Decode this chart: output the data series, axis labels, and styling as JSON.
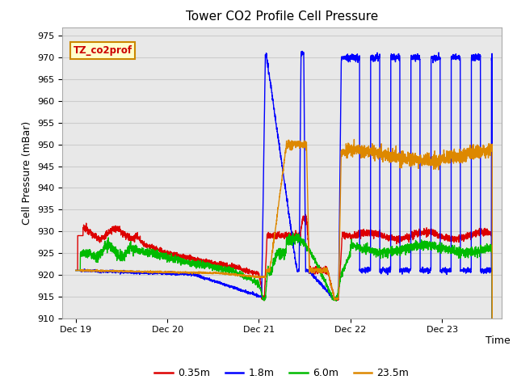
{
  "title": "Tower CO2 Profile Cell Pressure",
  "ylabel": "Cell Pressure (mBar)",
  "xlabel": "Time",
  "annotation_label": "TZ_co2prof",
  "annotation_bg": "#ffffcc",
  "annotation_border": "#cc8800",
  "ylim": [
    910,
    977
  ],
  "yticks": [
    910,
    915,
    920,
    925,
    930,
    935,
    940,
    945,
    950,
    955,
    960,
    965,
    970,
    975
  ],
  "xlim": [
    -0.15,
    4.65
  ],
  "xtick_positions": [
    0,
    1,
    2,
    3,
    4
  ],
  "xtick_labels": [
    "Dec 19",
    "Dec 20",
    "Dec 21",
    "Dec 22",
    "Dec 23"
  ],
  "grid_color": "#cccccc",
  "fig_bg": "#ffffff",
  "plot_bg": "#e8e8e8",
  "series": {
    "0.35m": {
      "color": "#dd0000",
      "lw": 1.0
    },
    "1.8m": {
      "color": "#0000ff",
      "lw": 1.0
    },
    "6.0m": {
      "color": "#00bb00",
      "lw": 1.0
    },
    "23.5m": {
      "color": "#dd8800",
      "lw": 1.0
    }
  },
  "legend_entries": [
    "0.35m",
    "1.8m",
    "6.0m",
    "23.5m"
  ]
}
